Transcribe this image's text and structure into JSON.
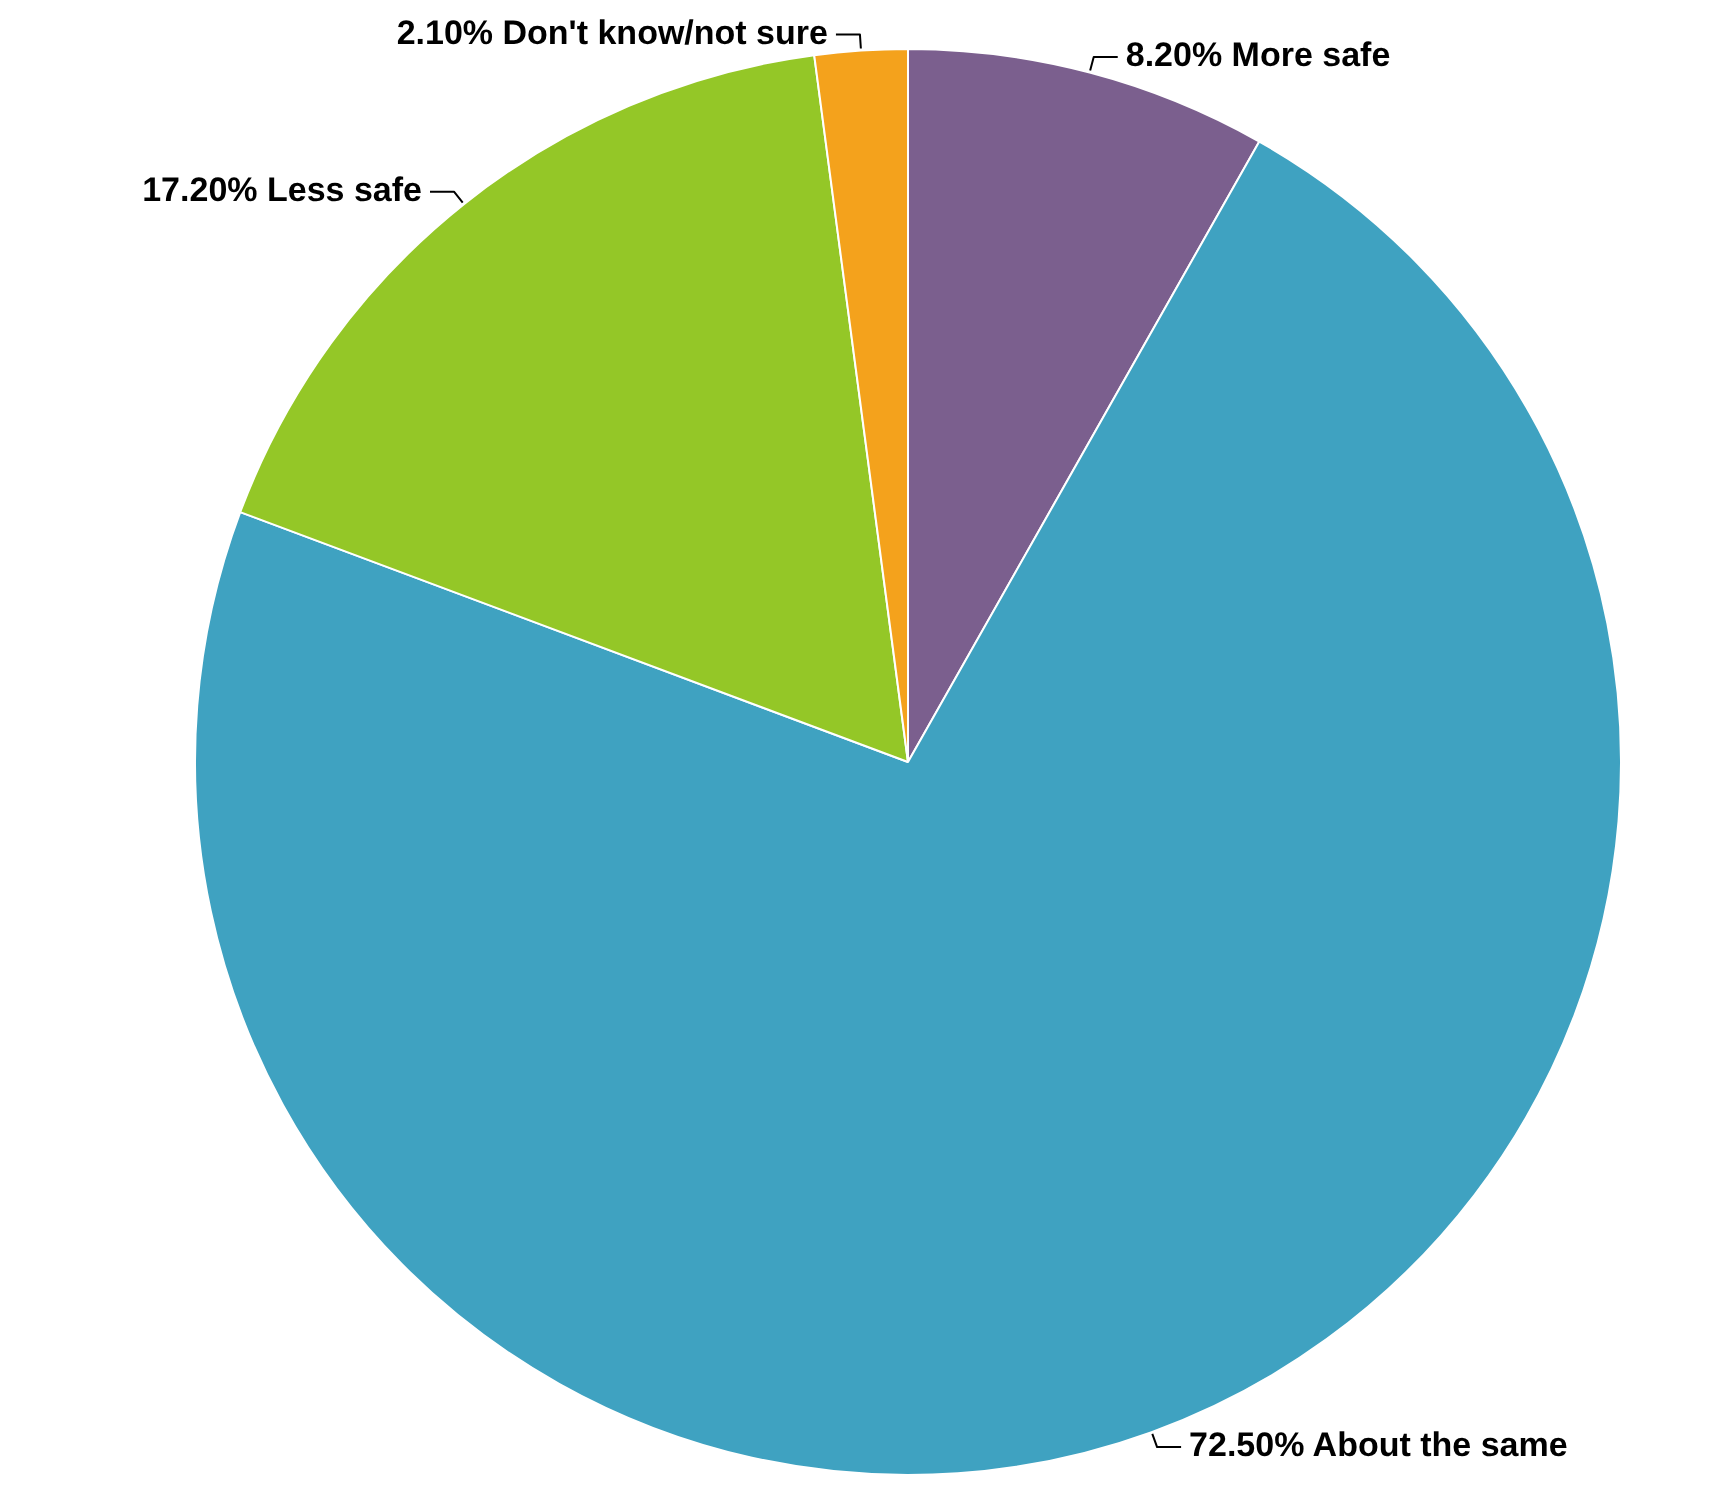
{
  "chart_data": {
    "type": "pie",
    "categories": [
      "More safe",
      "About the same",
      "Less safe",
      "Don't know/not sure"
    ],
    "values": [
      8.2,
      72.5,
      17.2,
      2.1
    ],
    "colors": [
      "#7b5f8e",
      "#3fa2c1",
      "#94c727",
      "#f4a21c"
    ],
    "value_labels": [
      "8.20%",
      "72.50%",
      "17.20%",
      "2.10%"
    ],
    "legend": false
  }
}
